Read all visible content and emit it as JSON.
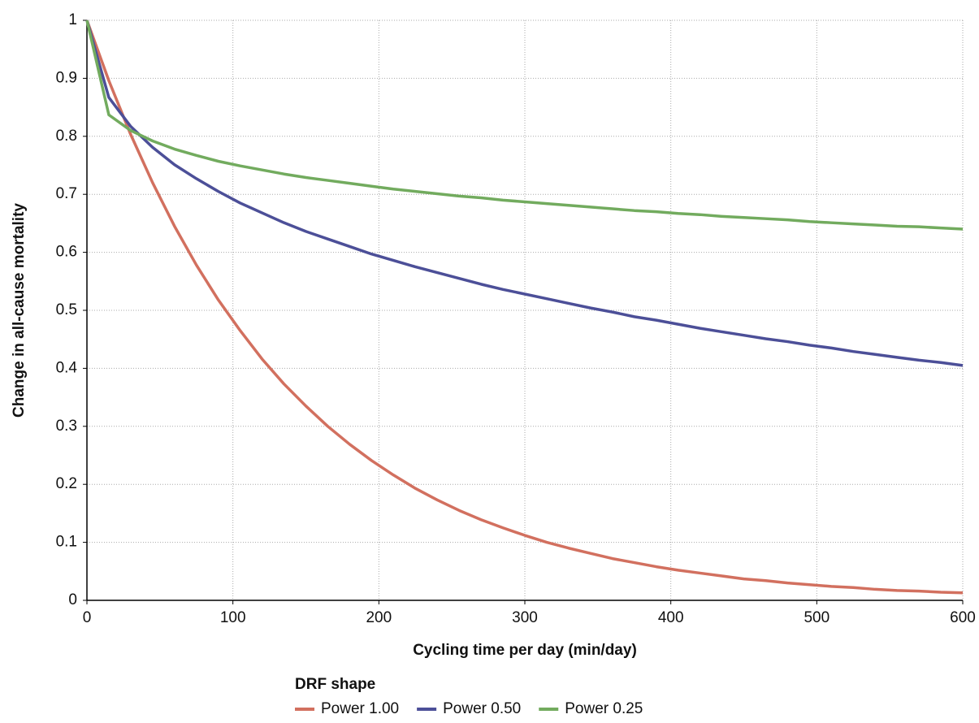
{
  "chart_data": {
    "type": "line",
    "xlabel": "Cycling time per day (min/day)",
    "ylabel": "Change in all-cause mortality",
    "legend_title": "DRF shape",
    "legend_position": "bottom",
    "grid": true,
    "xlim": [
      0,
      600
    ],
    "xticks": [
      0,
      100,
      200,
      300,
      400,
      500,
      600
    ],
    "ylim": [
      0,
      1
    ],
    "yticks": [
      0,
      0.1,
      0.2,
      0.3,
      0.4,
      0.5,
      0.6,
      0.7,
      0.8,
      0.9,
      1
    ],
    "x": [
      0,
      15,
      30,
      45,
      60,
      75,
      90,
      105,
      120,
      135,
      150,
      165,
      180,
      195,
      210,
      225,
      240,
      255,
      270,
      285,
      300,
      315,
      330,
      345,
      360,
      375,
      390,
      405,
      420,
      435,
      450,
      465,
      480,
      495,
      510,
      525,
      540,
      555,
      570,
      585,
      600
    ],
    "series": [
      {
        "name": "Power 1.00",
        "color": "#d2705f",
        "values": [
          1,
          0.896,
          0.803,
          0.72,
          0.645,
          0.578,
          0.518,
          0.465,
          0.416,
          0.373,
          0.335,
          0.3,
          0.269,
          0.241,
          0.216,
          0.193,
          0.173,
          0.155,
          0.139,
          0.125,
          0.112,
          0.1,
          0.09,
          0.081,
          0.072,
          0.065,
          0.058,
          0.052,
          0.047,
          0.042,
          0.037,
          0.034,
          0.03,
          0.027,
          0.024,
          0.022,
          0.019,
          0.017,
          0.016,
          0.014,
          0.013
        ]
      },
      {
        "name": "Power 0.50",
        "color": "#4c4f98",
        "values": [
          1,
          0.867,
          0.817,
          0.781,
          0.751,
          0.727,
          0.705,
          0.685,
          0.668,
          0.651,
          0.636,
          0.623,
          0.61,
          0.597,
          0.586,
          0.575,
          0.565,
          0.555,
          0.545,
          0.536,
          0.528,
          0.52,
          0.512,
          0.504,
          0.497,
          0.489,
          0.483,
          0.476,
          0.469,
          0.463,
          0.457,
          0.451,
          0.446,
          0.44,
          0.435,
          0.429,
          0.424,
          0.419,
          0.414,
          0.41,
          0.405
        ]
      },
      {
        "name": "Power 0.25",
        "color": "#72ab5e",
        "values": [
          1,
          0.837,
          0.81,
          0.792,
          0.778,
          0.767,
          0.757,
          0.749,
          0.742,
          0.735,
          0.729,
          0.724,
          0.719,
          0.714,
          0.709,
          0.705,
          0.701,
          0.697,
          0.694,
          0.69,
          0.687,
          0.684,
          0.681,
          0.678,
          0.675,
          0.672,
          0.67,
          0.667,
          0.665,
          0.662,
          0.66,
          0.658,
          0.656,
          0.653,
          0.651,
          0.649,
          0.647,
          0.645,
          0.644,
          0.642,
          0.64
        ]
      }
    ]
  }
}
